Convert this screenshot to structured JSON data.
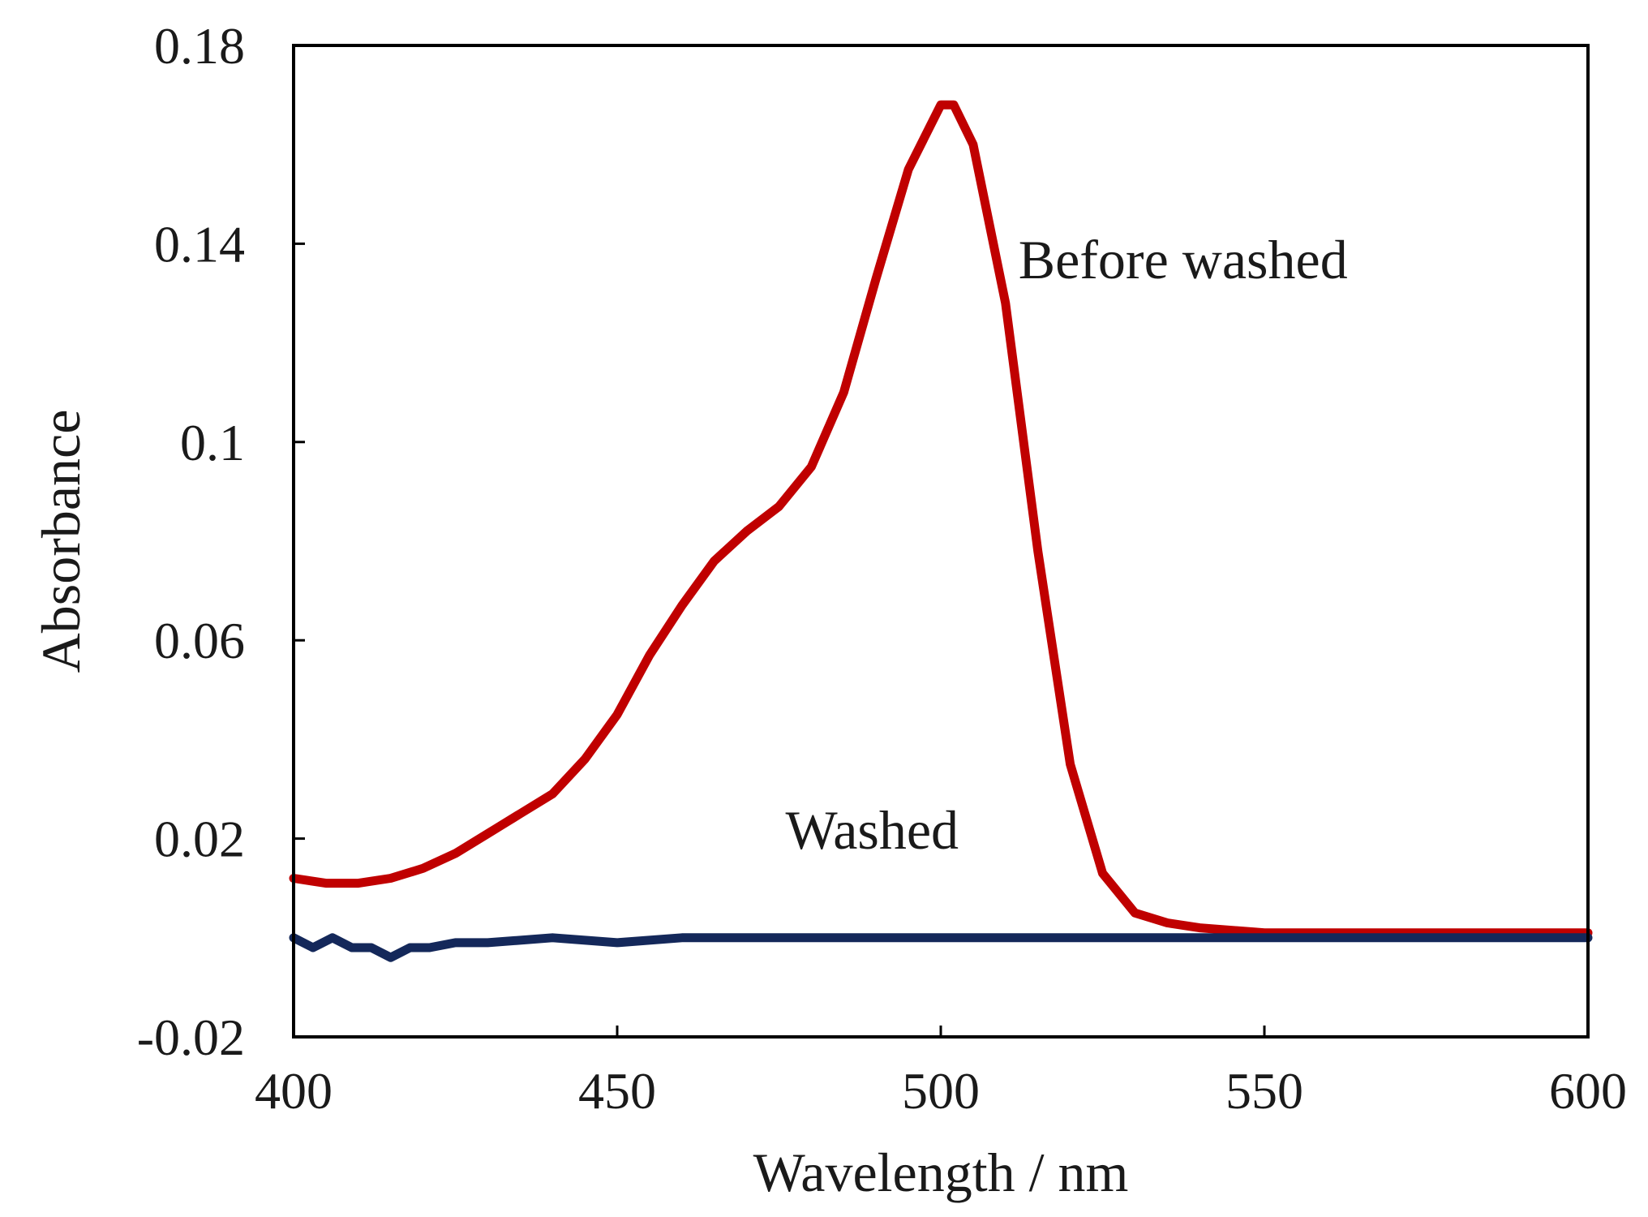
{
  "chart_data": {
    "type": "line",
    "title": "",
    "xlabel": "Wavelength / nm",
    "ylabel": "Absorbance",
    "xlim": [
      400,
      600
    ],
    "ylim": [
      -0.02,
      0.18
    ],
    "xticks": [
      400,
      450,
      500,
      550,
      600
    ],
    "xtick_labels": [
      "400",
      "450",
      "500",
      "550",
      "600"
    ],
    "yticks": [
      -0.02,
      0.02,
      0.06,
      0.1,
      0.14,
      0.18
    ],
    "ytick_labels": [
      "-0.02",
      "0.02",
      "0.06",
      "0.1",
      "0.14",
      "0.18"
    ],
    "grid": false,
    "legend": "none",
    "series": [
      {
        "name": "Before washed",
        "color": "#c00000",
        "x": [
          400,
          405,
          410,
          415,
          420,
          425,
          430,
          435,
          440,
          445,
          450,
          455,
          460,
          465,
          470,
          475,
          480,
          485,
          490,
          495,
          500,
          502,
          505,
          510,
          515,
          520,
          525,
          530,
          535,
          540,
          550,
          560,
          570,
          580,
          590,
          600
        ],
        "y": [
          0.012,
          0.011,
          0.011,
          0.012,
          0.014,
          0.017,
          0.021,
          0.025,
          0.029,
          0.036,
          0.045,
          0.057,
          0.067,
          0.076,
          0.082,
          0.087,
          0.095,
          0.11,
          0.133,
          0.155,
          0.168,
          0.168,
          0.16,
          0.128,
          0.078,
          0.035,
          0.013,
          0.005,
          0.003,
          0.002,
          0.001,
          0.001,
          0.001,
          0.001,
          0.001,
          0.001
        ]
      },
      {
        "name": "Washed",
        "color": "#14285a",
        "x": [
          400,
          403,
          406,
          409,
          412,
          415,
          418,
          421,
          425,
          430,
          440,
          450,
          460,
          480,
          500,
          520,
          540,
          560,
          580,
          600
        ],
        "y": [
          0.0,
          -0.002,
          0.0,
          -0.002,
          -0.002,
          -0.004,
          -0.002,
          -0.002,
          -0.001,
          -0.001,
          0.0,
          -0.001,
          0.0,
          0.0,
          0.0,
          0.0,
          0.0,
          0.0,
          0.0,
          0.0
        ]
      }
    ],
    "annotations": [
      {
        "text": "Before washed",
        "x": 512,
        "y": 0.133
      },
      {
        "text": "Washed",
        "x": 476,
        "y": 0.018
      }
    ]
  }
}
